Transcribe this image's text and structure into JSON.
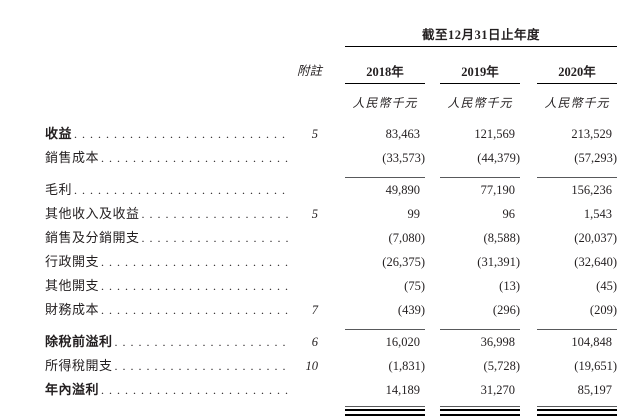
{
  "table": {
    "period_header": "截至12月31日止年度",
    "note_header": "附註",
    "year_headers": [
      "2018年",
      "2019年",
      "2020年"
    ],
    "unit_label": "人民幣千元",
    "rows": [
      {
        "label": "收益",
        "bold": true,
        "note": "5",
        "values": [
          "83,463",
          "121,569",
          "213,529"
        ],
        "rule": "none"
      },
      {
        "label": "銷售成本",
        "bold": false,
        "note": "",
        "values": [
          "(33,573)",
          "(44,379)",
          "(57,293)"
        ],
        "rule": "single"
      },
      {
        "label": "毛利",
        "bold": false,
        "note": "",
        "values": [
          "49,890",
          "77,190",
          "156,236"
        ],
        "rule": "none"
      },
      {
        "label": "其他收入及收益",
        "bold": false,
        "note": "5",
        "values": [
          "99",
          "96",
          "1,543"
        ],
        "rule": "none"
      },
      {
        "label": "銷售及分銷開支",
        "bold": false,
        "note": "",
        "values": [
          "(7,080)",
          "(8,588)",
          "(20,037)"
        ],
        "rule": "none"
      },
      {
        "label": "行政開支",
        "bold": false,
        "note": "",
        "values": [
          "(26,375)",
          "(31,391)",
          "(32,640)"
        ],
        "rule": "none"
      },
      {
        "label": "其他開支",
        "bold": false,
        "note": "",
        "values": [
          "(75)",
          "(13)",
          "(45)"
        ],
        "rule": "none"
      },
      {
        "label": "財務成本",
        "bold": false,
        "note": "7",
        "values": [
          "(439)",
          "(296)",
          "(209)"
        ],
        "rule": "single"
      },
      {
        "label": "除稅前溢利",
        "bold": true,
        "note": "6",
        "values": [
          "16,020",
          "36,998",
          "104,848"
        ],
        "rule": "none"
      },
      {
        "label": "所得稅開支",
        "bold": false,
        "note": "10",
        "values": [
          "(1,831)",
          "(5,728)",
          "(19,651)"
        ],
        "rule": "none"
      },
      {
        "label": "年內溢利",
        "bold": true,
        "note": "",
        "values": [
          "14,189",
          "31,270",
          "85,197"
        ],
        "rule": "total"
      }
    ],
    "colors": {
      "text": "#231f20",
      "rule_dark": "#000000",
      "rule_gray": "#58595b"
    }
  }
}
